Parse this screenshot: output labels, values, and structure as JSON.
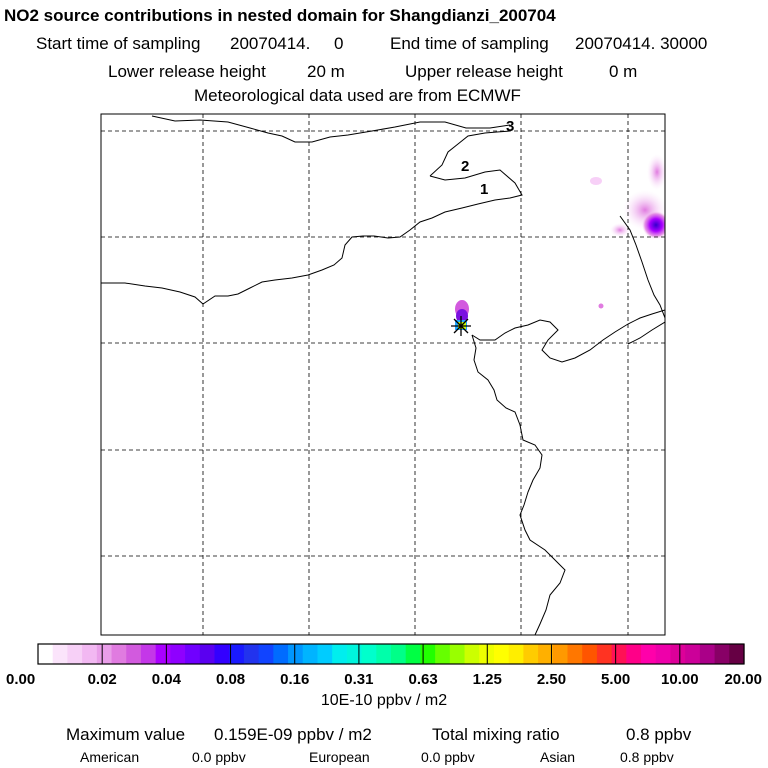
{
  "header": {
    "title": "NO2 source contributions in nested domain for Shangdianzi_200704",
    "start_label": "Start time of sampling",
    "start_value": "20070414.     0",
    "end_label": "End time of sampling",
    "end_value": "20070414. 30000",
    "lower_label": "Lower release height",
    "lower_value": "20 m",
    "upper_label": "Upper release height",
    "upper_value": "0 m",
    "met_line": "Meteorological data used are from ECMWF"
  },
  "map": {
    "contour_labels": [
      "3",
      "2",
      "1"
    ]
  },
  "colorbar": {
    "tick_labels": [
      "0.00",
      "0.02",
      "0.04",
      "0.08",
      "0.16",
      "0.31",
      "0.63",
      "1.25",
      "2.50",
      "5.00",
      "10.00",
      "20.00"
    ],
    "colors": [
      "#ffffff",
      "#fbe4fb",
      "#f7d0f7",
      "#f2b8f2",
      "#e99ee9",
      "#e07be0",
      "#d25ade",
      "#c437e8",
      "#aa00ff",
      "#8f00ff",
      "#7000ff",
      "#5a00f0",
      "#3300ff",
      "#1a1aff",
      "#2233ee",
      "#1144ff",
      "#006cff",
      "#0096ff",
      "#00b4ff",
      "#00ccff",
      "#00eeee",
      "#00f5dd",
      "#00ffcc",
      "#00ffaa",
      "#00ff88",
      "#00ff44",
      "#22ff00",
      "#66ff00",
      "#99ff00",
      "#ccff00",
      "#eeff00",
      "#ffff00",
      "#ffee00",
      "#ffcc00",
      "#ffb000",
      "#ff9900",
      "#ff7700",
      "#ff5500",
      "#ff3322",
      "#ff1155",
      "#ff0088",
      "#ff00aa",
      "#ee00aa",
      "#dd0099",
      "#cc0099",
      "#aa0088",
      "#880066",
      "#660044"
    ],
    "unit": "10E-10 ppbv / m2"
  },
  "stats": {
    "max_label": "Maximum value",
    "max_value": "0.159E-09 ppbv / m2",
    "total_label": "Total mixing ratio",
    "total_value": "0.8 ppbv",
    "american_label": "American",
    "american_value": "0.0 ppbv",
    "european_label": "European",
    "european_value": "0.0 ppbv",
    "asian_label": "Asian",
    "asian_value": "0.8 ppbv"
  },
  "chart_data": {
    "type": "heatmap",
    "title": "NO2 source contributions in nested domain for Shangdianzi_200704",
    "colorbar_levels": [
      0.0,
      0.02,
      0.04,
      0.08,
      0.16,
      0.31,
      0.63,
      1.25,
      2.5,
      5.0,
      10.0,
      20.0
    ],
    "colorbar_unit": "10E-10 ppbv / m2",
    "max_value": "0.159E-09 ppbv / m2",
    "total_mixing_ratio_ppbv": 0.8,
    "contributions_ppbv": {
      "American": 0.0,
      "European": 0.0,
      "Asian": 0.8
    },
    "release_height_lower_m": 20,
    "release_height_upper_m": 0,
    "meteorology": "ECMWF"
  }
}
